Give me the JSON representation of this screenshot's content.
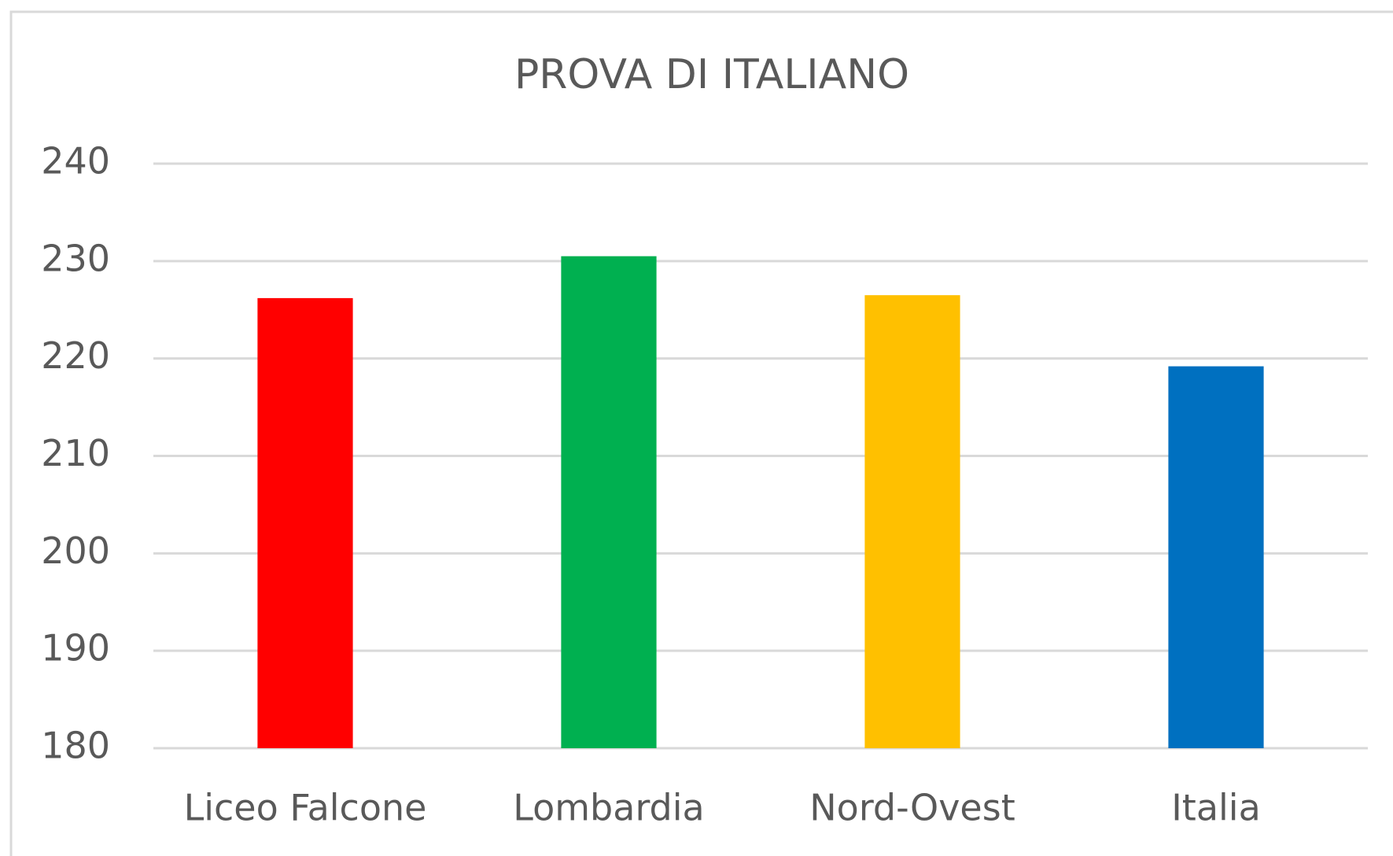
{
  "chart_data": {
    "type": "bar",
    "title": "PROVA DI ITALIANO",
    "categories": [
      "Liceo Falcone",
      "Lombardia",
      "Nord-Ovest",
      "Italia"
    ],
    "values": [
      226.2,
      230.5,
      226.5,
      219.2
    ],
    "colors": [
      "#ff0000",
      "#00b050",
      "#ffc000",
      "#0070c0"
    ],
    "ylim": [
      180,
      240
    ],
    "yticks": [
      180,
      190,
      200,
      210,
      220,
      230,
      240
    ],
    "grid": true
  }
}
